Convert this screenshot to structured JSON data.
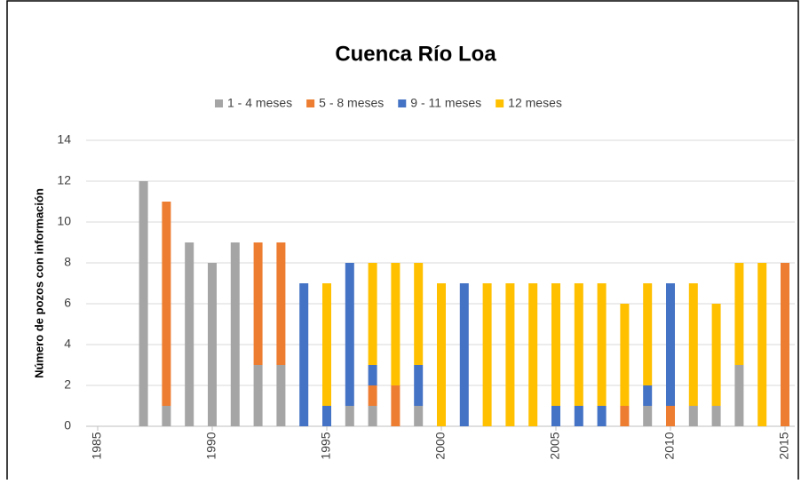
{
  "chart_data": {
    "type": "stacked_bar",
    "title": "Cuenca Río Loa",
    "y_label": "Número de pozos con información",
    "x": [
      1987,
      1988,
      1989,
      1990,
      1991,
      1992,
      1993,
      1994,
      1995,
      1996,
      1997,
      1998,
      1999,
      2000,
      2001,
      2002,
      2003,
      2004,
      2005,
      2006,
      2007,
      2008,
      2009,
      2010,
      2011,
      2012,
      2013,
      2014,
      2015
    ],
    "series": [
      {
        "name": "1 - 4 meses",
        "color": "#a5a5a5",
        "values": [
          12,
          1,
          9,
          8,
          9,
          3,
          3,
          0,
          0,
          1,
          1,
          0,
          1,
          0,
          0,
          0,
          0,
          0,
          0,
          0,
          0,
          0,
          1,
          0,
          1,
          1,
          3,
          0,
          0
        ]
      },
      {
        "name": "5 - 8 meses",
        "color": "#ed7d31",
        "values": [
          0,
          10,
          0,
          0,
          0,
          6,
          6,
          0,
          0,
          0,
          1,
          2,
          0,
          0,
          0,
          0,
          0,
          0,
          0,
          0,
          0,
          1,
          0,
          1,
          0,
          0,
          0,
          0,
          8
        ]
      },
      {
        "name": "9 - 11 meses",
        "color": "#4472c4",
        "values": [
          0,
          0,
          0,
          0,
          0,
          0,
          0,
          7,
          1,
          7,
          1,
          0,
          2,
          0,
          7,
          0,
          0,
          0,
          1,
          1,
          1,
          0,
          1,
          6,
          0,
          0,
          0,
          0,
          0
        ]
      },
      {
        "name": "12 meses",
        "color": "#ffc000",
        "values": [
          0,
          0,
          0,
          0,
          0,
          0,
          0,
          0,
          6,
          0,
          5,
          6,
          5,
          7,
          0,
          7,
          7,
          7,
          6,
          6,
          6,
          5,
          5,
          0,
          6,
          5,
          5,
          8,
          0
        ]
      }
    ],
    "xlim": [
      1985,
      2015
    ],
    "xticks": [
      1985,
      1990,
      1995,
      2000,
      2005,
      2010,
      2015
    ],
    "ylim": [
      0,
      14
    ],
    "yticks": [
      0,
      2,
      4,
      6,
      8,
      10,
      12,
      14
    ],
    "grid": true
  }
}
